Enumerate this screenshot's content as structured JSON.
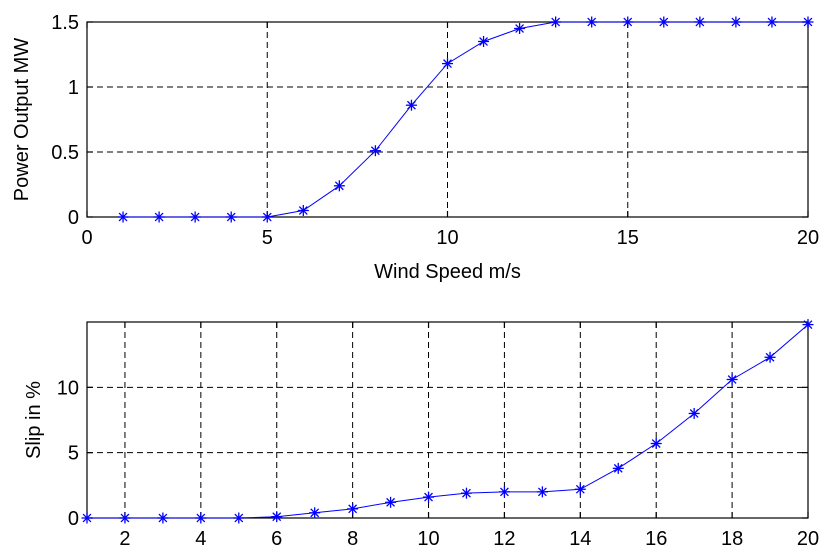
{
  "chart_data": [
    {
      "type": "line",
      "title": "",
      "xlabel": "Wind Speed m/s",
      "ylabel": "Power Output MW",
      "xlim": [
        0,
        20
      ],
      "ylim": [
        0,
        1.5
      ],
      "xticks": [
        "0",
        "5",
        "10",
        "15",
        "20"
      ],
      "yticks": [
        "0",
        "0.5",
        "1",
        "1.5"
      ],
      "grid": true,
      "marker": "asterisk",
      "color": "#0000ff",
      "x": [
        1,
        2,
        3,
        4,
        5,
        6,
        7,
        8,
        9,
        10,
        11,
        12,
        13,
        14,
        15,
        16,
        17,
        18,
        19,
        20
      ],
      "y": [
        0,
        0,
        0,
        0,
        0,
        0.05,
        0.24,
        0.51,
        0.86,
        1.18,
        1.35,
        1.45,
        1.5,
        1.5,
        1.5,
        1.5,
        1.5,
        1.5,
        1.5,
        1.5
      ]
    },
    {
      "type": "line",
      "title": "",
      "xlabel": "",
      "ylabel": "Slip in %",
      "xlim": [
        1,
        20
      ],
      "ylim": [
        0,
        15
      ],
      "xticks": [
        "2",
        "4",
        "6",
        "8",
        "10",
        "12",
        "14",
        "16",
        "18",
        "20"
      ],
      "yticks": [
        "0",
        "5",
        "10"
      ],
      "grid": true,
      "marker": "asterisk",
      "color": "#0000ff",
      "x": [
        1,
        2,
        3,
        4,
        5,
        6,
        7,
        8,
        9,
        10,
        11,
        12,
        13,
        14,
        15,
        16,
        17,
        18,
        19,
        20
      ],
      "y": [
        0,
        0,
        0,
        0,
        0,
        0.1,
        0.4,
        0.7,
        1.2,
        1.6,
        1.9,
        2.0,
        2.0,
        2.2,
        3.8,
        5.7,
        8.0,
        10.6,
        12.3,
        14.8
      ]
    }
  ]
}
